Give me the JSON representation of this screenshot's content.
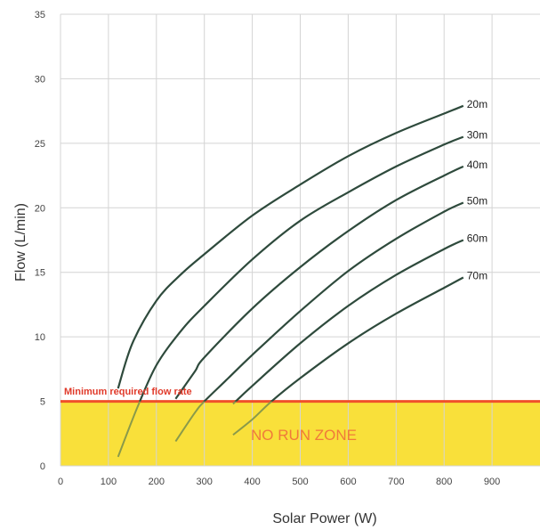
{
  "chart_data": {
    "type": "line",
    "title": "",
    "xlabel": "Solar Power (W)",
    "ylabel": "Flow (L/min)",
    "xlim": [
      0,
      1000
    ],
    "ylim": [
      0,
      35
    ],
    "x_ticks": [
      0,
      100,
      200,
      300,
      400,
      500,
      600,
      700,
      800,
      900
    ],
    "y_ticks": [
      0,
      5,
      10,
      15,
      20,
      25,
      30,
      35
    ],
    "grid": true,
    "legend": "inline labels at right end of each curve",
    "threshold": {
      "value": 5,
      "label": "Minimum required flow rate",
      "color": "#f0502a"
    },
    "zone": {
      "from": 0,
      "to": 5,
      "label": "NO RUN ZONE",
      "color": "#f9e03a"
    },
    "curve_color": "#2e4a3c",
    "below_threshold_color": "#8a9a4a",
    "series": [
      {
        "name": "20m",
        "x": [
          120,
          150,
          200,
          250,
          300,
          400,
          500,
          600,
          700,
          800,
          840
        ],
        "y": [
          6.0,
          9.5,
          12.8,
          14.8,
          16.4,
          19.4,
          21.8,
          24.0,
          25.8,
          27.3,
          27.9
        ]
      },
      {
        "name": "30m",
        "x": [
          120,
          160,
          200,
          250,
          300,
          400,
          500,
          600,
          700,
          800,
          840
        ],
        "y": [
          0.7,
          4.5,
          7.8,
          10.4,
          12.4,
          16.0,
          19.0,
          21.2,
          23.2,
          24.9,
          25.5
        ]
      },
      {
        "name": "40m",
        "x": [
          240,
          280,
          300,
          400,
          500,
          600,
          700,
          800,
          840
        ],
        "y": [
          5.2,
          7.3,
          8.4,
          12.2,
          15.4,
          18.2,
          20.6,
          22.5,
          23.2
        ]
      },
      {
        "name": "50m",
        "x": [
          240,
          280,
          300,
          350,
          400,
          500,
          600,
          700,
          800,
          840
        ],
        "y": [
          1.9,
          4.1,
          5.0,
          6.8,
          8.6,
          12.0,
          15.1,
          17.6,
          19.7,
          20.4
        ]
      },
      {
        "name": "60m",
        "x": [
          360,
          400,
          500,
          600,
          700,
          800,
          840
        ],
        "y": [
          4.8,
          6.2,
          9.5,
          12.4,
          14.8,
          16.8,
          17.5
        ]
      },
      {
        "name": "70m",
        "x": [
          360,
          400,
          440,
          500,
          600,
          700,
          800,
          840
        ],
        "y": [
          2.4,
          3.6,
          5.0,
          6.8,
          9.5,
          11.8,
          13.8,
          14.6
        ]
      }
    ]
  }
}
